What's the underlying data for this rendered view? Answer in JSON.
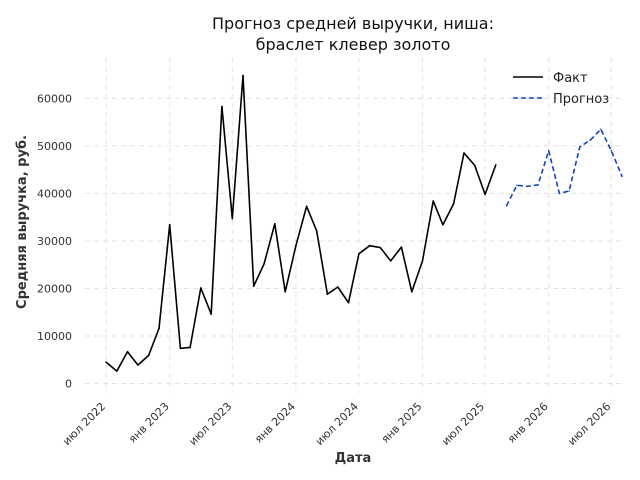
{
  "chart_data": {
    "type": "line",
    "title_lines": [
      "Прогноз средней выручки, ниша:",
      "браслет клевер золото"
    ],
    "xlabel": "Дата",
    "ylabel": "Средняя выручка, руб.",
    "xlim": [
      "2022-05-01",
      "2026-08-01"
    ],
    "ylim": [
      -2000,
      68500
    ],
    "x_ticks": [
      {
        "date": "2022-07-01",
        "label": "июл 2022"
      },
      {
        "date": "2023-01-01",
        "label": "янв 2023"
      },
      {
        "date": "2023-07-01",
        "label": "июл 2023"
      },
      {
        "date": "2024-01-01",
        "label": "янв 2024"
      },
      {
        "date": "2024-07-01",
        "label": "июл 2024"
      },
      {
        "date": "2025-01-01",
        "label": "янв 2025"
      },
      {
        "date": "2025-07-01",
        "label": "июл 2025"
      },
      {
        "date": "2026-01-01",
        "label": "янв 2026"
      },
      {
        "date": "2026-07-01",
        "label": "июл 2026"
      }
    ],
    "y_ticks": [
      0,
      10000,
      20000,
      30000,
      40000,
      50000,
      60000
    ],
    "grid": true,
    "legend_position": "top-right",
    "series": [
      {
        "name": "Факт",
        "color": "#000000",
        "style": "solid",
        "x": [
          "2022-07-01",
          "2022-08-01",
          "2022-09-01",
          "2022-10-01",
          "2022-11-01",
          "2022-12-01",
          "2023-01-01",
          "2023-02-01",
          "2023-03-01",
          "2023-04-01",
          "2023-05-01",
          "2023-06-01",
          "2023-07-01",
          "2023-08-01",
          "2023-09-01",
          "2023-10-01",
          "2023-11-01",
          "2023-12-01",
          "2024-01-01",
          "2024-02-01",
          "2024-03-01",
          "2024-04-01",
          "2024-05-01",
          "2024-06-01",
          "2024-07-01",
          "2024-08-01",
          "2024-09-01",
          "2024-10-01",
          "2024-11-01",
          "2024-12-01",
          "2025-01-01",
          "2025-02-01",
          "2025-03-01",
          "2025-04-01",
          "2025-05-01",
          "2025-06-01",
          "2025-07-01",
          "2025-08-01"
        ],
        "values": [
          4500,
          2600,
          6700,
          3900,
          5900,
          11600,
          33400,
          7400,
          7600,
          20100,
          14600,
          58300,
          34700,
          64800,
          20500,
          25200,
          33600,
          19300,
          29000,
          37300,
          32100,
          18800,
          20300,
          17000,
          27300,
          29000,
          28600,
          25800,
          28700,
          19300,
          25800,
          38400,
          33400,
          37800,
          48500,
          45900,
          39800,
          46000
        ]
      },
      {
        "name": "Прогноз",
        "color": "#1144cc",
        "style": "dashed",
        "x": [
          "2025-09-01",
          "2025-10-01",
          "2025-11-01",
          "2025-12-01",
          "2026-01-01",
          "2026-02-01",
          "2026-03-01",
          "2026-04-01",
          "2026-05-01",
          "2026-06-01",
          "2026-07-01",
          "2026-08-01"
        ],
        "values": [
          37400,
          41700,
          41500,
          41800,
          49000,
          40000,
          40500,
          49800,
          51200,
          53500,
          49000,
          43600
        ]
      }
    ]
  }
}
